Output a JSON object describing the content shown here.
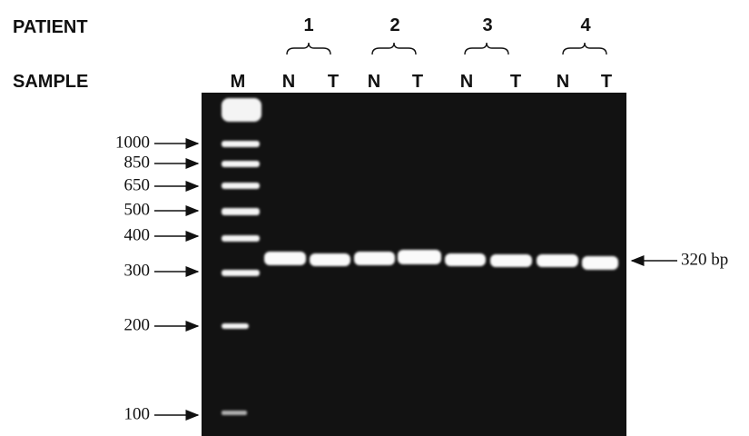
{
  "header": {
    "patient_label": "PATIENT",
    "sample_label": "SAMPLE"
  },
  "patients": [
    "1",
    "2",
    "3",
    "4"
  ],
  "samples": [
    "M",
    "N",
    "T",
    "N",
    "T",
    "N",
    "T",
    "N",
    "T"
  ],
  "markers": [
    "1000",
    "850",
    "650",
    "500",
    "400",
    "300",
    "200",
    "100"
  ],
  "band_label": "320 bp"
}
